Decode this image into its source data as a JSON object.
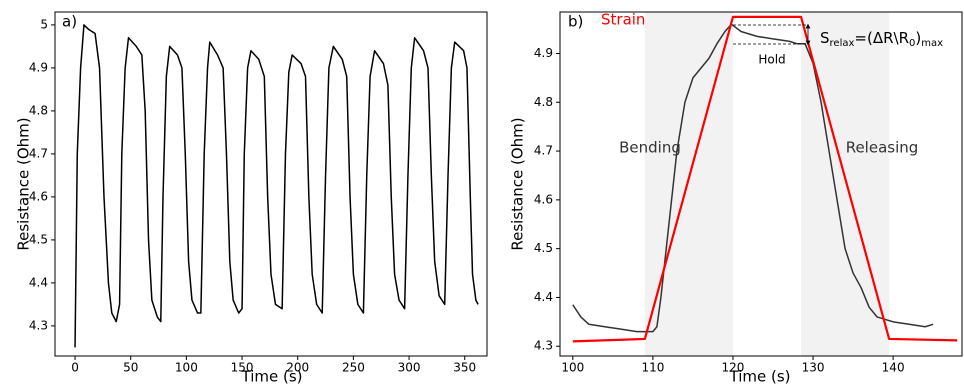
{
  "chart_data": [
    {
      "type": "line",
      "panel_label": "a)",
      "x_label": "Time (s)",
      "y_label": "Resistance (Ohm)",
      "xlim": [
        -18,
        370
      ],
      "ylim": [
        4.23,
        5.03
      ],
      "xticks": [
        0,
        50,
        100,
        150,
        200,
        250,
        300,
        350
      ],
      "yticks": [
        4.3,
        4.4,
        4.5,
        4.6,
        4.7,
        4.8,
        4.9,
        5.0
      ],
      "series": [
        {
          "color": "#000000",
          "x": [
            0,
            2,
            5,
            8,
            12,
            18,
            22,
            26,
            30,
            33,
            37,
            40,
            42,
            45,
            48,
            55,
            60,
            63,
            66,
            69,
            74,
            77,
            79,
            82,
            85,
            92,
            96,
            99,
            102,
            105,
            110,
            113,
            116,
            119,
            121,
            128,
            133,
            136,
            139,
            142,
            147,
            150,
            152,
            155,
            158,
            165,
            170,
            173,
            176,
            180,
            186,
            189,
            192,
            195,
            203,
            207,
            210,
            213,
            217,
            222,
            225,
            228,
            232,
            240,
            244,
            247,
            250,
            254,
            259,
            262,
            265,
            269,
            277,
            281,
            284,
            287,
            291,
            296,
            299,
            302,
            305,
            313,
            317,
            320,
            323,
            327,
            332,
            335,
            338,
            341,
            349,
            352,
            355,
            357,
            360,
            362
          ],
          "values": [
            4.25,
            4.7,
            4.9,
            5.0,
            4.99,
            4.98,
            4.9,
            4.6,
            4.4,
            4.33,
            4.31,
            4.35,
            4.7,
            4.9,
            4.97,
            4.95,
            4.93,
            4.8,
            4.5,
            4.36,
            4.32,
            4.31,
            4.6,
            4.88,
            4.95,
            4.93,
            4.9,
            4.7,
            4.45,
            4.36,
            4.33,
            4.33,
            4.7,
            4.9,
            4.96,
            4.93,
            4.9,
            4.7,
            4.45,
            4.36,
            4.33,
            4.34,
            4.7,
            4.9,
            4.94,
            4.92,
            4.88,
            4.6,
            4.42,
            4.35,
            4.34,
            4.7,
            4.89,
            4.93,
            4.91,
            4.88,
            4.6,
            4.42,
            4.35,
            4.33,
            4.65,
            4.9,
            4.95,
            4.92,
            4.88,
            4.6,
            4.42,
            4.35,
            4.33,
            4.65,
            4.88,
            4.94,
            4.91,
            4.86,
            4.6,
            4.42,
            4.36,
            4.34,
            4.65,
            4.9,
            4.97,
            4.94,
            4.9,
            4.65,
            4.45,
            4.37,
            4.35,
            4.65,
            4.9,
            4.96,
            4.94,
            4.9,
            4.6,
            4.42,
            4.36,
            4.35
          ]
        }
      ]
    },
    {
      "type": "line",
      "panel_label": "b)",
      "x_label": "Time (s)",
      "y_label": "Resistance (Ohm)",
      "xlim": [
        98.4,
        148.6
      ],
      "ylim": [
        4.28,
        4.985
      ],
      "xticks": [
        100,
        110,
        120,
        130,
        140
      ],
      "yticks": [
        4.3,
        4.4,
        4.5,
        4.6,
        4.7,
        4.8,
        4.9
      ],
      "shaded_regions": [
        [
          109,
          120
        ],
        [
          128.5,
          139.5
        ]
      ],
      "annotations": [
        "Bending",
        "Releasing",
        "Hold"
      ],
      "formula": [
        "S",
        "relax",
        "=(ΔR\\R",
        "0",
        ")",
        "max"
      ],
      "series": [
        {
          "color": "#333333",
          "x": [
            100,
            101,
            102,
            104,
            106,
            108,
            110,
            110.5,
            111,
            112,
            113,
            114,
            115,
            116,
            117,
            118,
            119,
            119.8,
            121,
            123,
            125,
            127,
            128,
            129,
            130,
            131,
            132,
            133,
            134,
            135,
            136,
            137,
            138,
            140,
            142,
            144,
            145
          ],
          "values": [
            4.385,
            4.36,
            4.345,
            4.34,
            4.335,
            4.33,
            4.33,
            4.34,
            4.4,
            4.55,
            4.7,
            4.8,
            4.85,
            4.87,
            4.89,
            4.92,
            4.945,
            4.96,
            4.945,
            4.935,
            4.93,
            4.925,
            4.92,
            4.92,
            4.88,
            4.8,
            4.7,
            4.6,
            4.5,
            4.45,
            4.42,
            4.38,
            4.36,
            4.35,
            4.345,
            4.34,
            4.345
          ]
        },
        {
          "name": "Strain",
          "color": "#ff0000",
          "x": [
            100,
            109,
            120,
            128.5,
            139.5,
            148
          ],
          "values": [
            4.31,
            4.315,
            4.975,
            4.975,
            4.315,
            4.312
          ]
        }
      ]
    }
  ]
}
